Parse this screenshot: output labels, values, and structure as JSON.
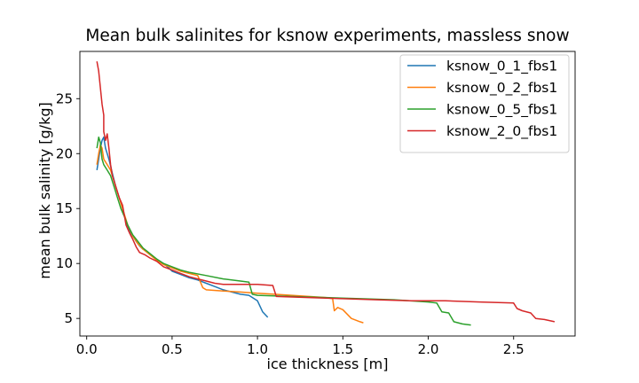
{
  "chart_data": {
    "type": "line",
    "title": "Mean bulk salinites for ksnow experiments, massless snow",
    "xlabel": "ice thickness [m]",
    "ylabel": "mean bulk salinity [g/kg]",
    "xlim": [
      -0.04,
      2.86
    ],
    "ylim": [
      3.4,
      29.3
    ],
    "xticks": [
      0.0,
      0.5,
      1.0,
      1.5,
      2.0,
      2.5
    ],
    "xtick_labels": [
      "0.0",
      "0.5",
      "1.0",
      "1.5",
      "2.0",
      "2.5"
    ],
    "yticks": [
      5,
      10,
      15,
      20,
      25
    ],
    "ytick_labels": [
      "5",
      "10",
      "15",
      "20",
      "25"
    ],
    "grid": false,
    "legend_position": "top-right",
    "series": [
      {
        "name": "ksnow_0_1_fbs1",
        "color": "#1f77b4",
        "points": [
          [
            0.06,
            18.5
          ],
          [
            0.07,
            19.5
          ],
          [
            0.08,
            20.5
          ],
          [
            0.09,
            21.2
          ],
          [
            0.1,
            21.5
          ],
          [
            0.11,
            20.5
          ],
          [
            0.12,
            20.0
          ],
          [
            0.13,
            19.5
          ],
          [
            0.15,
            18.2
          ],
          [
            0.17,
            17.0
          ],
          [
            0.19,
            16.0
          ],
          [
            0.21,
            15.0
          ],
          [
            0.23,
            13.8
          ],
          [
            0.25,
            13.0
          ],
          [
            0.27,
            12.5
          ],
          [
            0.29,
            12.0
          ],
          [
            0.31,
            11.6
          ],
          [
            0.33,
            11.3
          ],
          [
            0.36,
            11.0
          ],
          [
            0.39,
            10.6
          ],
          [
            0.42,
            10.3
          ],
          [
            0.45,
            10.0
          ],
          [
            0.48,
            9.6
          ],
          [
            0.5,
            9.3
          ],
          [
            0.55,
            9.0
          ],
          [
            0.6,
            8.7
          ],
          [
            0.65,
            8.5
          ],
          [
            0.7,
            8.2
          ],
          [
            0.75,
            7.9
          ],
          [
            0.8,
            7.6
          ],
          [
            0.85,
            7.4
          ],
          [
            0.9,
            7.2
          ],
          [
            0.95,
            7.1
          ],
          [
            1.0,
            6.6
          ],
          [
            1.03,
            5.6
          ],
          [
            1.06,
            5.1
          ]
        ]
      },
      {
        "name": "ksnow_0_2_fbs1",
        "color": "#ff7f0e",
        "points": [
          [
            0.06,
            19.0
          ],
          [
            0.07,
            20.0
          ],
          [
            0.08,
            20.8
          ],
          [
            0.09,
            20.5
          ],
          [
            0.1,
            19.5
          ],
          [
            0.12,
            19.0
          ],
          [
            0.14,
            18.5
          ],
          [
            0.16,
            17.5
          ],
          [
            0.18,
            16.5
          ],
          [
            0.2,
            15.5
          ],
          [
            0.22,
            14.5
          ],
          [
            0.24,
            13.5
          ],
          [
            0.27,
            12.5
          ],
          [
            0.3,
            11.8
          ],
          [
            0.33,
            11.3
          ],
          [
            0.37,
            10.8
          ],
          [
            0.41,
            10.3
          ],
          [
            0.45,
            9.9
          ],
          [
            0.5,
            9.6
          ],
          [
            0.55,
            9.3
          ],
          [
            0.6,
            9.1
          ],
          [
            0.65,
            8.9
          ],
          [
            0.68,
            7.8
          ],
          [
            0.7,
            7.6
          ],
          [
            0.8,
            7.5
          ],
          [
            0.9,
            7.4
          ],
          [
            1.0,
            7.3
          ],
          [
            1.1,
            7.2
          ],
          [
            1.2,
            7.1
          ],
          [
            1.3,
            7.0
          ],
          [
            1.4,
            6.9
          ],
          [
            1.44,
            6.8
          ],
          [
            1.45,
            5.7
          ],
          [
            1.47,
            6.0
          ],
          [
            1.5,
            5.8
          ],
          [
            1.55,
            5.0
          ],
          [
            1.6,
            4.7
          ],
          [
            1.62,
            4.6
          ]
        ]
      },
      {
        "name": "ksnow_0_5_fbs1",
        "color": "#2ca02c",
        "points": [
          [
            0.06,
            20.5
          ],
          [
            0.07,
            21.5
          ],
          [
            0.08,
            21.0
          ],
          [
            0.09,
            19.5
          ],
          [
            0.1,
            19.0
          ],
          [
            0.12,
            18.5
          ],
          [
            0.14,
            18.0
          ],
          [
            0.16,
            17.0
          ],
          [
            0.18,
            16.0
          ],
          [
            0.2,
            15.0
          ],
          [
            0.22,
            14.3
          ],
          [
            0.24,
            13.5
          ],
          [
            0.27,
            12.6
          ],
          [
            0.3,
            12.0
          ],
          [
            0.33,
            11.4
          ],
          [
            0.37,
            10.9
          ],
          [
            0.41,
            10.4
          ],
          [
            0.45,
            10.0
          ],
          [
            0.5,
            9.7
          ],
          [
            0.55,
            9.4
          ],
          [
            0.6,
            9.2
          ],
          [
            0.7,
            8.9
          ],
          [
            0.8,
            8.6
          ],
          [
            0.9,
            8.4
          ],
          [
            0.95,
            8.3
          ],
          [
            0.97,
            7.2
          ],
          [
            1.0,
            7.1
          ],
          [
            1.2,
            7.0
          ],
          [
            1.4,
            6.9
          ],
          [
            1.6,
            6.8
          ],
          [
            1.8,
            6.7
          ],
          [
            2.0,
            6.5
          ],
          [
            2.05,
            6.4
          ],
          [
            2.08,
            5.6
          ],
          [
            2.12,
            5.5
          ],
          [
            2.15,
            4.7
          ],
          [
            2.2,
            4.5
          ],
          [
            2.25,
            4.4
          ]
        ]
      },
      {
        "name": "ksnow_2_0_fbs1",
        "color": "#d62728",
        "points": [
          [
            0.06,
            28.4
          ],
          [
            0.07,
            27.5
          ],
          [
            0.08,
            26.0
          ],
          [
            0.09,
            24.5
          ],
          [
            0.1,
            23.5
          ],
          [
            0.1,
            22.0
          ],
          [
            0.11,
            21.2
          ],
          [
            0.12,
            21.8
          ],
          [
            0.13,
            20.5
          ],
          [
            0.14,
            19.0
          ],
          [
            0.15,
            18.0
          ],
          [
            0.17,
            17.0
          ],
          [
            0.19,
            16.0
          ],
          [
            0.21,
            15.3
          ],
          [
            0.23,
            13.5
          ],
          [
            0.25,
            12.8
          ],
          [
            0.27,
            12.2
          ],
          [
            0.29,
            11.5
          ],
          [
            0.31,
            11.0
          ],
          [
            0.34,
            10.8
          ],
          [
            0.37,
            10.5
          ],
          [
            0.41,
            10.2
          ],
          [
            0.45,
            9.7
          ],
          [
            0.5,
            9.4
          ],
          [
            0.55,
            9.1
          ],
          [
            0.6,
            8.8
          ],
          [
            0.65,
            8.6
          ],
          [
            0.7,
            8.4
          ],
          [
            0.75,
            8.2
          ],
          [
            0.8,
            8.1
          ],
          [
            0.9,
            8.1
          ],
          [
            1.0,
            8.1
          ],
          [
            1.09,
            8.0
          ],
          [
            1.11,
            7.0
          ],
          [
            1.3,
            6.9
          ],
          [
            1.5,
            6.8
          ],
          [
            1.7,
            6.7
          ],
          [
            1.9,
            6.6
          ],
          [
            2.1,
            6.6
          ],
          [
            2.3,
            6.5
          ],
          [
            2.5,
            6.4
          ],
          [
            2.52,
            5.9
          ],
          [
            2.55,
            5.7
          ],
          [
            2.6,
            5.5
          ],
          [
            2.63,
            5.0
          ],
          [
            2.68,
            4.9
          ],
          [
            2.74,
            4.7
          ]
        ]
      }
    ]
  }
}
